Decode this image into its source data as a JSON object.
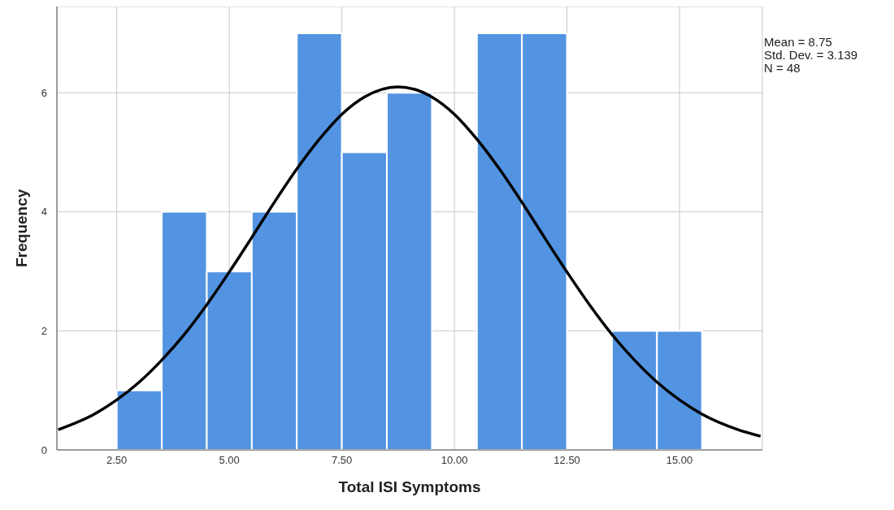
{
  "chart_data": {
    "type": "histogram",
    "xlabel": "Total ISI Symptoms",
    "ylabel": "Frequency",
    "bins": [
      2.5,
      3.5,
      4.5,
      5.5,
      6.5,
      7.5,
      8.5,
      9.5,
      10.5,
      11.5,
      12.5,
      13.5,
      14.5,
      15.5
    ],
    "values": [
      1,
      4,
      3,
      4,
      7,
      5,
      6,
      0,
      7,
      7,
      0,
      2,
      2
    ],
    "color": "#5294e2",
    "series": [
      {
        "type": "line",
        "color": "#000000",
        "x": [
          1.2,
          2,
          2.5,
          3,
          3.5,
          4,
          4.5,
          5,
          5.5,
          6,
          6.5,
          7,
          7.5,
          8,
          8.75,
          9.5,
          10,
          10.5,
          11,
          11.5,
          12,
          12.5,
          13,
          13.5,
          14,
          14.5,
          15,
          15.5,
          16.3,
          16.8
        ],
        "values": [
          0.34,
          0.6,
          0.84,
          1.14,
          1.51,
          1.94,
          2.44,
          2.99,
          3.57,
          4.16,
          4.72,
          5.22,
          5.64,
          5.93,
          6.1,
          5.93,
          5.64,
          5.22,
          4.72,
          4.16,
          3.57,
          2.99,
          2.44,
          1.94,
          1.51,
          1.14,
          0.84,
          0.6,
          0.34,
          0.23
        ]
      }
    ],
    "xlim": [
      1.17,
      16.84
    ],
    "ylim": [
      0,
      7.45
    ],
    "xticks": [
      {
        "value": 2.5,
        "label": "2.50"
      },
      {
        "value": 5,
        "label": "5.00"
      },
      {
        "value": 7.5,
        "label": "7.50"
      },
      {
        "value": 10,
        "label": "10.00"
      },
      {
        "value": 12.5,
        "label": "12.50"
      },
      {
        "value": 15,
        "label": "15.00"
      }
    ],
    "yticks": [
      0,
      2,
      4,
      6
    ],
    "grid": true,
    "marker": "none",
    "annotations": [
      "Mean = 8.75",
      "Std. Dev. = 3.139",
      "N = 48"
    ]
  }
}
